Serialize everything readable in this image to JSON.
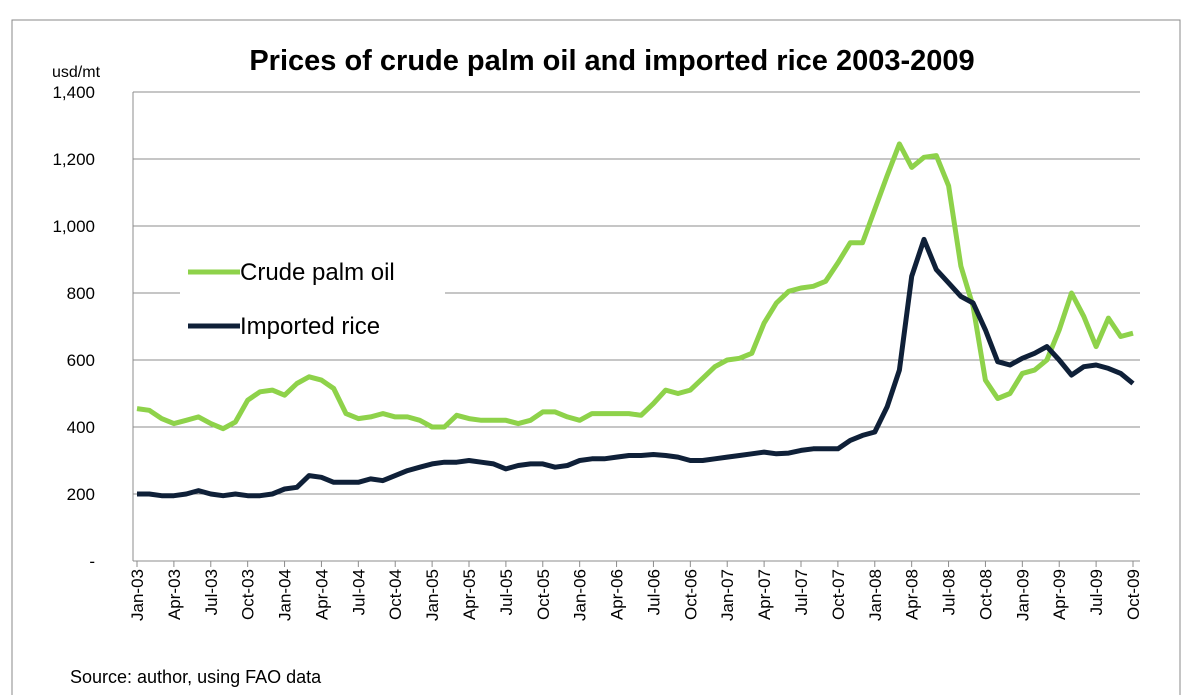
{
  "chart_data": {
    "type": "line",
    "title": "Prices of crude palm oil and imported rice 2003-2009",
    "y_label": "usd/mt",
    "source": "Source: author, using FAO data",
    "categories": [
      "Jan-03",
      null,
      null,
      "Apr-03",
      null,
      null,
      "Jul-03",
      null,
      null,
      "Oct-03",
      null,
      null,
      "Jan-04",
      null,
      null,
      "Apr-04",
      null,
      null,
      "Jul-04",
      null,
      null,
      "Oct-04",
      null,
      null,
      "Jan-05",
      null,
      null,
      "Apr-05",
      null,
      null,
      "Jul-05",
      null,
      null,
      "Oct-05",
      null,
      null,
      "Jan-06",
      null,
      null,
      "Apr-06",
      null,
      null,
      "Jul-06",
      null,
      null,
      "Oct-06",
      null,
      null,
      "Jan-07",
      null,
      null,
      "Apr-07",
      null,
      null,
      "Jul-07",
      null,
      null,
      "Oct-07",
      null,
      null,
      "Jan-08",
      null,
      null,
      "Apr-08",
      null,
      null,
      "Jul-08",
      null,
      null,
      "Oct-08",
      null,
      null,
      "Jan-09",
      null,
      null,
      "Apr-09",
      null,
      null,
      "Jul-09",
      null,
      null,
      "Oct-09"
    ],
    "series": [
      {
        "name": "Crude palm oil",
        "color": "#8ed24a",
        "values": [
          455,
          450,
          425,
          410,
          420,
          430,
          410,
          395,
          415,
          480,
          505,
          510,
          495,
          530,
          550,
          540,
          515,
          440,
          425,
          430,
          440,
          430,
          430,
          420,
          400,
          400,
          435,
          425,
          420,
          420,
          420,
          410,
          420,
          445,
          445,
          430,
          420,
          440,
          440,
          440,
          440,
          435,
          470,
          510,
          500,
          510,
          545,
          580,
          600,
          605,
          620,
          710,
          770,
          805,
          815,
          820,
          835,
          890,
          950,
          950,
          1050,
          1150,
          1245,
          1175,
          1205,
          1210,
          1120,
          880,
          760,
          540,
          485,
          500,
          560,
          570,
          600,
          690,
          800,
          730,
          640,
          725,
          670,
          680
        ]
      },
      {
        "name": "Imported rice",
        "color": "#0f2038",
        "values": [
          200,
          200,
          195,
          195,
          200,
          210,
          200,
          195,
          200,
          195,
          195,
          200,
          215,
          220,
          255,
          250,
          235,
          235,
          235,
          245,
          240,
          255,
          270,
          280,
          290,
          295,
          295,
          300,
          295,
          290,
          275,
          285,
          290,
          290,
          280,
          285,
          300,
          305,
          305,
          310,
          315,
          315,
          318,
          315,
          310,
          300,
          300,
          305,
          310,
          315,
          320,
          325,
          320,
          322,
          330,
          335,
          335,
          335,
          360,
          375,
          385,
          460,
          570,
          850,
          960,
          870,
          830,
          790,
          770,
          690,
          595,
          585,
          605,
          620,
          640,
          600,
          555,
          580,
          585,
          575,
          560,
          530
        ]
      }
    ],
    "ylim": [
      0,
      1400
    ],
    "yticks": [
      {
        "value": 0,
        "label": "-"
      },
      200,
      400,
      600,
      800,
      {
        "value": 1000,
        "label": "1,000"
      },
      {
        "value": 1200,
        "label": "1,200"
      },
      {
        "value": 1400,
        "label": "1,400"
      }
    ],
    "grid": true
  }
}
